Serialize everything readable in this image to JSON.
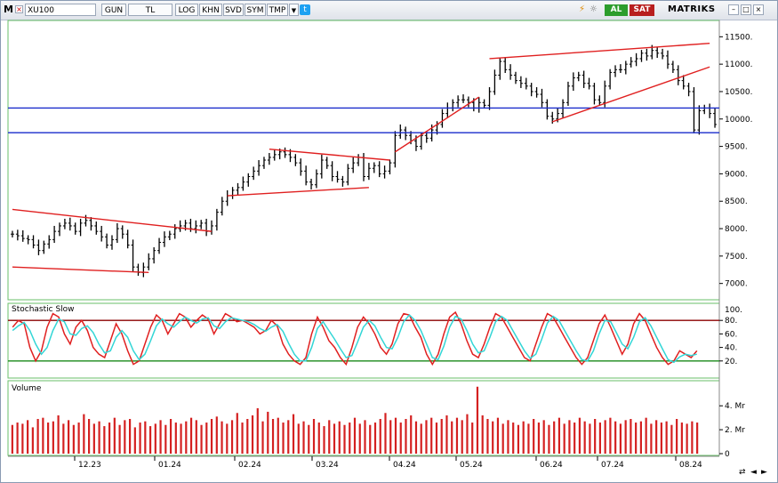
{
  "toolbar": {
    "m_label": "M",
    "close_glyph": "×",
    "symbol": "XU100",
    "buttons": [
      "GUN",
      "TL",
      "LOG",
      "KHN",
      "SVD",
      "SYM",
      "TMP"
    ],
    "dropdown_glyph": "▼",
    "twitter_glyph": "t",
    "flash_glyph": "⚡",
    "info_glyph": "☼",
    "buy_label": "AL",
    "sell_label": "SAT",
    "brand": "MATRIKS",
    "window_buttons": [
      "–",
      "□",
      "×"
    ]
  },
  "colors": {
    "candles": "#000000",
    "trendlines": "#e02020",
    "horizontal_levels": "#1a2ccc",
    "stoch_k": "#e02020",
    "stoch_d": "#33d6d6",
    "overbought_line": "#8b0000",
    "oversold_line": "#1a8a1a",
    "volume_bars": "#d42020",
    "pane_border": "#6abf6a"
  },
  "nav_icons": [
    "play-loop-icon",
    "arrow-left-icon",
    "arrow-right-icon"
  ],
  "nav_glyphs": [
    "⇄",
    "◄",
    "►"
  ],
  "chart_data": [
    {
      "type": "line",
      "pane": "price",
      "x_ticks": [
        "12.23",
        "01.24",
        "02.24",
        "03.24",
        "04.24",
        "05.24",
        "06.24",
        "07.24",
        "08.24"
      ],
      "y_ticks": [
        7000,
        7500,
        8000,
        8500,
        9000,
        9500,
        10000,
        10500,
        11000,
        11500
      ],
      "y_tick_labels": [
        "7000.",
        "7500.",
        "8000.",
        "8500.",
        "9000.",
        "9500.",
        "10000.",
        "10500.",
        "11000.",
        "11500."
      ],
      "ylim": [
        6800,
        11700
      ],
      "series": [
        {
          "values": [
            7900,
            7870,
            7820,
            7800,
            7700,
            7600,
            7720,
            7800,
            7950,
            8050,
            8100,
            8050,
            7950,
            8100,
            8150,
            8050,
            7950,
            7850,
            7700,
            7800,
            8000,
            7900,
            7700,
            7300,
            7200,
            7300,
            7450,
            7600,
            7750,
            7850,
            7900,
            8000,
            8050,
            8100,
            8000,
            8050,
            8100,
            7950,
            8050,
            8300,
            8500,
            8600,
            8700,
            8750,
            8850,
            8950,
            9050,
            9150,
            9250,
            9300,
            9350,
            9400,
            9350,
            9300,
            9200,
            9050,
            8850,
            8800,
            9000,
            9250,
            9150,
            8950,
            8900,
            8850,
            9100,
            9200,
            9300,
            8950,
            9100,
            9150,
            9000,
            9050,
            9200,
            9700,
            9800,
            9700,
            9600,
            9500,
            9700,
            9650,
            9800,
            9900,
            10100,
            10200,
            10300,
            10350,
            10350,
            10300,
            10200,
            10300,
            10250,
            10500,
            10800,
            11050,
            10900,
            10800,
            10700,
            10650,
            10600,
            10500,
            10450,
            10300,
            10050,
            10000,
            10100,
            10300,
            10600,
            10750,
            10800,
            10650,
            10600,
            10350,
            10300,
            10600,
            10850,
            10900,
            10900,
            11000,
            11050,
            11100,
            11200,
            11150,
            11250,
            11200,
            11150,
            11000,
            10900,
            10700,
            10600,
            10500,
            9800,
            10150,
            10200,
            10100,
            9900
          ]
        }
      ],
      "trendlines": [
        {
          "from": [
            0,
            8350
          ],
          "to": [
            38,
            7950
          ]
        },
        {
          "from": [
            0,
            7300
          ],
          "to": [
            26,
            7200
          ]
        },
        {
          "from": [
            41,
            8600
          ],
          "to": [
            68,
            8750
          ]
        },
        {
          "from": [
            49,
            9450
          ],
          "to": [
            72,
            9250
          ]
        },
        {
          "from": [
            73,
            9400
          ],
          "to": [
            89,
            10400
          ]
        },
        {
          "from": [
            91,
            11100
          ],
          "to": [
            133,
            11380
          ]
        },
        {
          "from": [
            103,
            9950
          ],
          "to": [
            133,
            10950
          ]
        }
      ],
      "levels": [
        10200,
        9750
      ]
    },
    {
      "type": "line",
      "pane": "oscillator",
      "title": "Stochastic Slow",
      "y_ticks": [
        20,
        40,
        60,
        80
      ],
      "y_tick_labels": [
        "20.",
        "40.",
        "60.",
        "80."
      ],
      "top_tick_label": "100.",
      "ylim": [
        0,
        100
      ],
      "overbought": 80,
      "oversold": 20,
      "series": [
        {
          "name": "%K",
          "values": [
            70,
            80,
            75,
            40,
            20,
            35,
            70,
            90,
            85,
            60,
            45,
            70,
            80,
            65,
            40,
            30,
            25,
            50,
            75,
            60,
            35,
            15,
            20,
            45,
            70,
            88,
            80,
            60,
            75,
            90,
            85,
            70,
            80,
            88,
            82,
            60,
            75,
            90,
            85,
            78,
            80,
            75,
            70,
            60,
            65,
            80,
            72,
            45,
            30,
            20,
            15,
            25,
            60,
            85,
            70,
            50,
            40,
            25,
            15,
            40,
            70,
            85,
            75,
            60,
            40,
            30,
            45,
            75,
            90,
            88,
            70,
            55,
            30,
            15,
            30,
            60,
            85,
            92,
            75,
            50,
            30,
            25,
            45,
            70,
            90,
            85,
            70,
            55,
            40,
            25,
            20,
            45,
            70,
            90,
            85,
            70,
            55,
            40,
            25,
            15,
            25,
            50,
            75,
            88,
            70,
            50,
            30,
            45,
            75,
            90,
            80,
            60,
            40,
            25,
            15,
            20,
            35,
            30,
            25,
            35
          ]
        },
        {
          "name": "%D",
          "values": [
            65,
            72,
            77,
            65,
            45,
            30,
            40,
            65,
            82,
            78,
            60,
            58,
            68,
            72,
            62,
            45,
            32,
            35,
            55,
            65,
            55,
            35,
            22,
            30,
            50,
            72,
            82,
            75,
            70,
            78,
            85,
            80,
            76,
            82,
            84,
            72,
            68,
            78,
            84,
            82,
            80,
            78,
            74,
            68,
            64,
            70,
            74,
            64,
            46,
            30,
            20,
            20,
            40,
            68,
            78,
            65,
            52,
            38,
            25,
            28,
            48,
            70,
            80,
            72,
            55,
            40,
            38,
            55,
            78,
            88,
            80,
            65,
            45,
            25,
            22,
            42,
            70,
            86,
            82,
            65,
            45,
            32,
            35,
            55,
            78,
            86,
            80,
            65,
            50,
            35,
            24,
            30,
            52,
            76,
            86,
            80,
            65,
            50,
            35,
            22,
            20,
            35,
            60,
            80,
            78,
            62,
            45,
            38,
            55,
            78,
            84,
            72,
            55,
            38,
            22,
            18,
            26,
            30,
            28,
            30
          ]
        }
      ]
    },
    {
      "type": "bar",
      "pane": "volume",
      "title": "Volume",
      "y_ticks": [
        0,
        2,
        4
      ],
      "y_tick_labels": [
        "0",
        "2. Mr",
        "4. Mr"
      ],
      "ylim": [
        0,
        5.8
      ],
      "values": [
        2.4,
        2.6,
        2.5,
        2.8,
        2.2,
        2.9,
        3.0,
        2.6,
        2.7,
        3.2,
        2.5,
        2.8,
        2.4,
        2.6,
        3.3,
        2.9,
        2.5,
        2.7,
        2.3,
        2.6,
        3.0,
        2.4,
        2.8,
        2.9,
        2.2,
        2.6,
        2.7,
        2.3,
        2.5,
        2.8,
        2.4,
        2.9,
        2.6,
        2.5,
        2.7,
        3.0,
        2.8,
        2.4,
        2.6,
        2.9,
        3.1,
        2.7,
        2.5,
        2.8,
        3.4,
        2.6,
        2.9,
        3.2,
        3.8,
        2.7,
        3.5,
        2.9,
        3.0,
        2.6,
        2.8,
        3.3,
        2.5,
        2.7,
        2.4,
        2.9,
        2.6,
        2.3,
        2.8,
        2.5,
        2.7,
        2.4,
        2.6,
        3.0,
        2.5,
        2.8,
        2.4,
        2.6,
        2.9,
        3.4,
        2.8,
        3.0,
        2.6,
        2.9,
        3.2,
        2.7,
        2.5,
        2.8,
        3.0,
        2.6,
        2.9,
        3.2,
        2.7,
        3.0,
        2.8,
        3.3,
        2.6,
        5.6,
        3.2,
        2.9,
        2.7,
        3.0,
        2.5,
        2.8,
        2.6,
        2.4,
        2.7,
        2.5,
        2.9,
        2.6,
        2.8,
        2.4,
        2.7,
        3.0,
        2.5,
        2.8,
        2.6,
        3.0,
        2.7,
        2.5,
        2.9,
        2.6,
        2.8,
        3.0,
        2.7,
        2.5,
        2.8,
        2.9,
        2.6,
        2.7,
        3.0,
        2.5,
        2.8,
        2.6,
        2.7,
        2.4,
        2.9,
        2.6,
        2.5,
        2.7,
        2.6
      ]
    }
  ]
}
